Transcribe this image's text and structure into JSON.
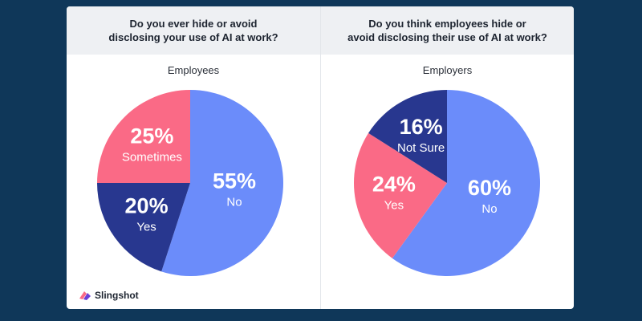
{
  "chart_data": [
    {
      "type": "pie",
      "title": "Do you ever hide or avoid\ndisclosing your use of AI at work?",
      "label": "Employees",
      "slices": [
        {
          "name": "No",
          "value": 55,
          "display": "55%",
          "color": "#6b8cfa"
        },
        {
          "name": "Yes",
          "value": 20,
          "display": "20%",
          "color": "#28378f"
        },
        {
          "name": "Sometimes",
          "value": 25,
          "display": "25%",
          "color": "#fa6a86"
        }
      ]
    },
    {
      "type": "pie",
      "title": "Do you think employees hide or\navoid disclosing their use of AI at work?",
      "label": "Employers",
      "slices": [
        {
          "name": "No",
          "value": 60,
          "display": "60%",
          "color": "#6b8cfa"
        },
        {
          "name": "Yes",
          "value": 24,
          "display": "24%",
          "color": "#fa6a86"
        },
        {
          "name": "Not Sure",
          "value": 16,
          "display": "16%",
          "color": "#28378f"
        }
      ]
    }
  ],
  "brand": {
    "name": "Slingshot"
  }
}
